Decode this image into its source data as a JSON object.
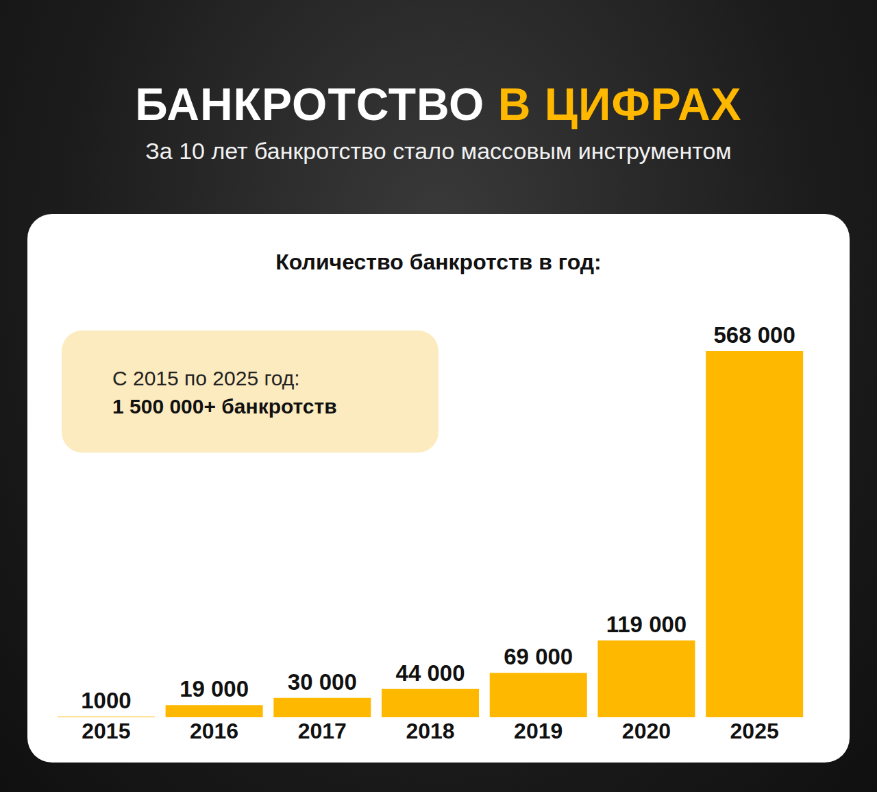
{
  "header": {
    "title": [
      "БАНКРОТСТВО",
      "В ЦИФРАХ"
    ],
    "subtitle": "За 10 лет банкротство стало массовым инструментом"
  },
  "callout": {
    "text": "С 2015 по 2025 год:",
    "highlight": "1 500 000+ банкротств"
  },
  "chart_data": {
    "type": "bar",
    "title": "Количество банкротств в год:",
    "categories": [
      "2015",
      "2016",
      "2017",
      "2018",
      "2019",
      "2020",
      "2025"
    ],
    "values": [
      1000,
      19000,
      30000,
      44000,
      69000,
      119000,
      568000
    ],
    "value_labels": [
      "1000",
      "19 000",
      "30 000",
      "44 000",
      "69 000",
      "119 000",
      "568 000"
    ],
    "color": "#ffb800",
    "ylim": [
      0,
      568000
    ],
    "yticks": [],
    "grid": false,
    "data_labels": true,
    "tick_labels": "x"
  }
}
